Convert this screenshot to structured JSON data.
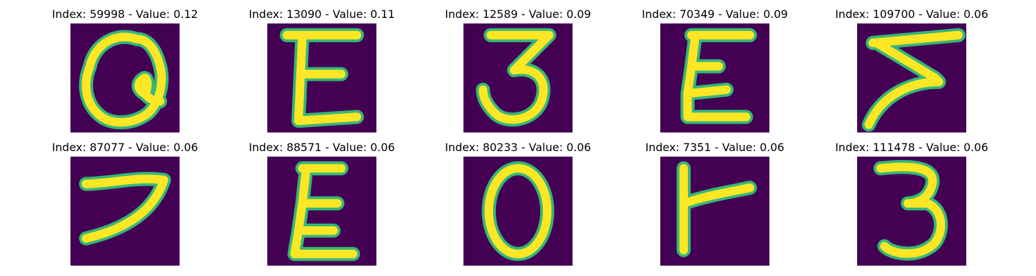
{
  "colors": {
    "background": "#440154",
    "glyph_core": "#fde725",
    "glyph_edge": "#35b779"
  },
  "panels": [
    {
      "title": "Index: 59998 - Value: 0.12",
      "glyph": "Q-like"
    },
    {
      "title": "Index: 13090 - Value: 0.11",
      "glyph": "E-like"
    },
    {
      "title": "Index: 12589 - Value: 0.09",
      "glyph": "3-like"
    },
    {
      "title": "Index: 70349 - Value: 0.09",
      "glyph": "epsilon-like"
    },
    {
      "title": "Index: 109700 - Value: 0.06",
      "glyph": "Z-like"
    },
    {
      "title": "Index: 87077 - Value: 0.06",
      "glyph": "7-like"
    },
    {
      "title": "Index: 88571 - Value: 0.06",
      "glyph": "epsilon-like"
    },
    {
      "title": "Index: 80233 - Value: 0.06",
      "glyph": "0-like"
    },
    {
      "title": "Index: 7351 - Value: 0.06",
      "glyph": "L-like"
    },
    {
      "title": "Index: 111478 - Value: 0.06",
      "glyph": "3-like"
    }
  ]
}
